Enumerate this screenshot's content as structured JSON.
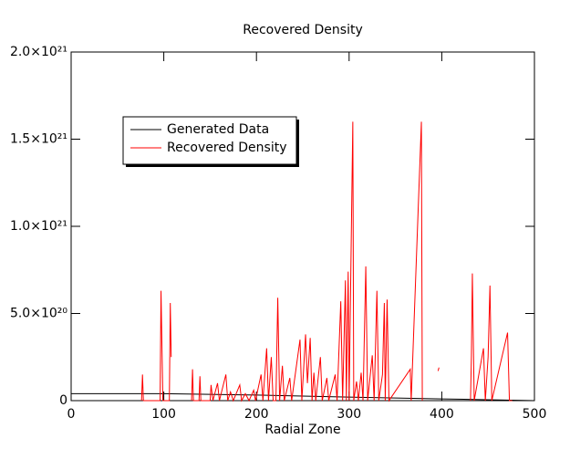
{
  "chart_data": {
    "type": "line",
    "title": "Recovered Density",
    "x_label": "Radial Zone",
    "xlim": [
      0,
      500
    ],
    "xticks": [
      0,
      100,
      200,
      300,
      400,
      500
    ],
    "ylim": [
      0,
      2e+21
    ],
    "yticks": [
      0,
      {
        "value": 5e+20,
        "label": "5.0×10²⁰"
      },
      {
        "value": 1e+21,
        "label": "1.0×10²¹"
      },
      {
        "value": 1.5e+21,
        "label": "1.5×10²¹"
      },
      {
        "value": 2e+21,
        "label": "2.0×10²¹"
      }
    ],
    "legend": "upper-left",
    "series": [
      {
        "name": "Generated Data",
        "color": "#000000",
        "x": [
          0,
          100,
          200,
          300,
          400,
          500
        ],
        "values": [
          4e+19,
          4e+19,
          3.2e+19,
          2e+19,
          1e+19,
          0
        ]
      },
      {
        "name": "Recovered Density",
        "color": "#ff0000",
        "x": [
          76,
          77,
          78,
          96,
          97,
          99,
          106,
          107,
          108,
          null,
          130,
          131,
          132,
          138,
          139,
          140,
          150,
          151,
          153,
          158,
          160,
          167,
          169,
          172,
          175,
          182,
          184,
          188,
          192,
          197,
          199,
          205,
          207,
          211,
          213,
          216,
          218,
          221,
          223,
          225,
          228,
          230,
          236,
          238,
          247,
          249,
          253,
          255,
          258,
          260,
          262,
          264,
          269,
          271,
          276,
          278,
          285,
          287,
          291,
          293,
          296,
          297,
          299,
          300,
          304,
          305,
          308,
          310,
          313,
          315,
          318,
          320,
          325,
          327,
          330,
          332,
          336,
          338,
          339,
          341,
          343,
          366,
          367,
          378,
          379,
          null,
          396,
          397,
          null,
          431,
          432,
          433,
          435,
          445,
          447,
          450,
          452,
          454,
          471,
          473,
          476
        ],
        "values": [
          0,
          1.5e+20,
          0,
          0,
          6.3e+20,
          0,
          0,
          5.6e+20,
          2.5e+20,
          null,
          0,
          1.8e+20,
          0,
          0,
          1.4e+20,
          0,
          0,
          9e+19,
          0,
          1e+20,
          0,
          1.5e+20,
          0,
          5e+19,
          0,
          9e+19,
          0,
          4e+19,
          0,
          6e+19,
          0,
          1.5e+20,
          0,
          3e+20,
          0,
          2.5e+20,
          0,
          0,
          5.9e+20,
          0,
          2e+20,
          0,
          1.3e+20,
          0,
          3.5e+20,
          0,
          3.8e+20,
          1e+20,
          3.6e+20,
          0,
          1.6e+20,
          0,
          2.5e+20,
          0,
          1.3e+20,
          0,
          1.5e+20,
          0,
          5.7e+20,
          0,
          6.9e+20,
          0,
          7.4e+20,
          0,
          1.6e+21,
          0,
          1.1e+20,
          0,
          1.6e+20,
          0,
          7.7e+20,
          0,
          2.6e+20,
          0,
          6.3e+20,
          0,
          1.5e+20,
          5.6e+20,
          0,
          5.8e+20,
          0,
          1.8e+20,
          0,
          1.6e+21,
          0,
          null,
          1.7e+20,
          1.9e+20,
          null,
          0,
          2.6e+20,
          7.3e+20,
          0,
          3e+20,
          0,
          2.5e+20,
          6.6e+20,
          0,
          3.9e+20,
          0,
          0
        ]
      }
    ]
  }
}
